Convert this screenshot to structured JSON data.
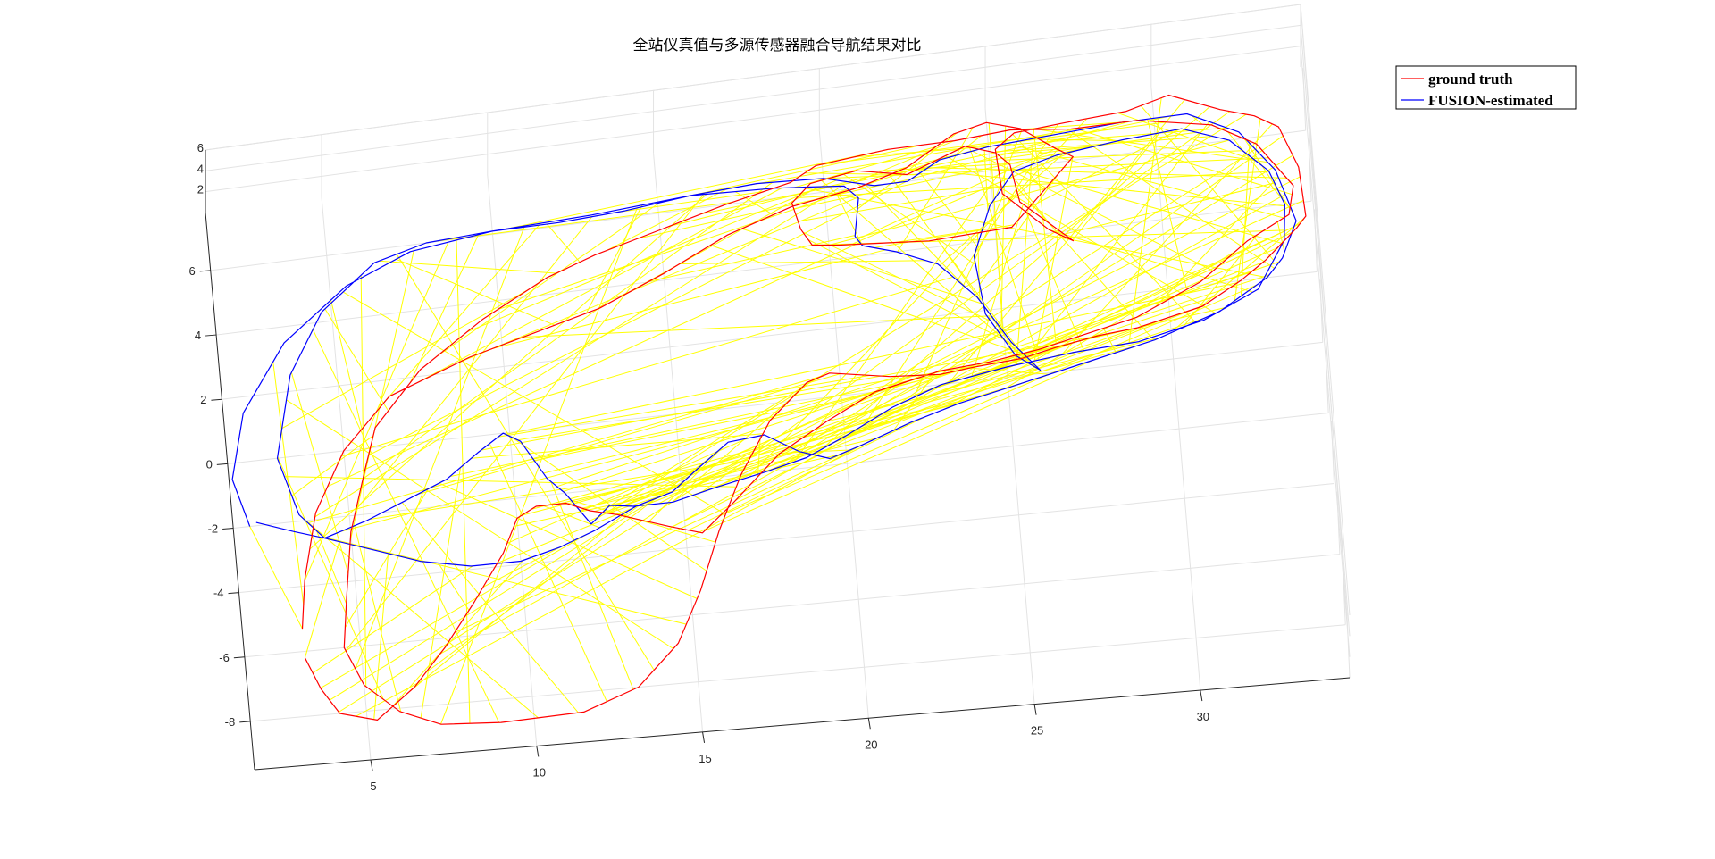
{
  "figure": {
    "title": "全站仪真值与多源传感器融合导航结果对比"
  },
  "chart_data": {
    "type": "line",
    "title": "全站仪真值与多源传感器融合导航结果对比",
    "xlabel": "",
    "ylabel": "",
    "zlabel": "",
    "view": "3d-oblique",
    "grid": true,
    "xlim": [
      1.5,
      34.5
    ],
    "ylim": [
      -9.5,
      7.8
    ],
    "zlim": [
      0,
      6
    ],
    "x_ticks": [
      "5",
      "10",
      "15",
      "20",
      "25",
      "30"
    ],
    "y_ticks": [
      "-8",
      "-6",
      "-4",
      "-2",
      "0",
      "2",
      "4",
      "6"
    ],
    "z_ticks": [
      "2",
      "4",
      "6"
    ],
    "legend_position": "top-right",
    "series": [
      {
        "name": "ground truth",
        "color": "#ff0000",
        "points": [
          [
            3.3,
            -5.3
          ],
          [
            3.5,
            -3.8
          ],
          [
            4.0,
            -1.8
          ],
          [
            5.0,
            0.0
          ],
          [
            6.5,
            1.5
          ],
          [
            9,
            2.4
          ],
          [
            11,
            2.9
          ],
          [
            13,
            3.4
          ],
          [
            15,
            4.2
          ],
          [
            17,
            5.1
          ],
          [
            19,
            5.7
          ],
          [
            21,
            6.0
          ],
          [
            22.5,
            6.4
          ],
          [
            24,
            7.2
          ],
          [
            25,
            7.4
          ],
          [
            26,
            7.1
          ],
          [
            27,
            6.4
          ],
          [
            27.5,
            6.1
          ],
          [
            26.5,
            5.2
          ],
          [
            25.5,
            4.3
          ],
          [
            23,
            4.2
          ],
          [
            20.3,
            4.4
          ],
          [
            19.5,
            4.5
          ],
          [
            19.2,
            5.0
          ],
          [
            19.0,
            5.8
          ],
          [
            19.6,
            6.3
          ],
          [
            21,
            6.5
          ],
          [
            22.5,
            6.2
          ],
          [
            24.3,
            6.8
          ],
          [
            25.2,
            6.5
          ],
          [
            25.6,
            6.1
          ],
          [
            25.8,
            5.0
          ],
          [
            27.3,
            3.7
          ],
          [
            26.6,
            4.1
          ],
          [
            25.3,
            5.3
          ],
          [
            25.2,
            6.6
          ],
          [
            25.8,
            7.0
          ],
          [
            27.3,
            7.1
          ],
          [
            29.2,
            7.2
          ],
          [
            30.5,
            7.5
          ],
          [
            32,
            6.9
          ],
          [
            33,
            6.6
          ],
          [
            33.7,
            6.2
          ],
          [
            34.2,
            5.0
          ],
          [
            34.3,
            3.6
          ],
          [
            34.0,
            3.3
          ],
          [
            33.0,
            2.5
          ],
          [
            32.2,
            2.0
          ],
          [
            31.0,
            1.4
          ],
          [
            29,
            1.0
          ],
          [
            27.8,
            0.9
          ],
          [
            26.5,
            0.7
          ],
          [
            25.5,
            0.5
          ],
          [
            24.0,
            0.4
          ],
          [
            23.0,
            0.3
          ],
          [
            21.5,
            0.4
          ],
          [
            19.7,
            0.7
          ],
          [
            19.0,
            0.5
          ],
          [
            17.8,
            -0.5
          ],
          [
            16.8,
            -2.0
          ],
          [
            16.0,
            -3.6
          ],
          [
            15.3,
            -5.3
          ],
          [
            14.5,
            -6.8
          ],
          [
            13.2,
            -8.0
          ],
          [
            11.5,
            -8.6
          ],
          [
            9,
            -8.7
          ],
          [
            7.2,
            -8.6
          ],
          [
            6.0,
            -8.1
          ],
          [
            5.0,
            -7.2
          ],
          [
            4.5,
            -6.0
          ],
          [
            4.7,
            -4.5
          ],
          [
            5.0,
            -2.5
          ],
          [
            5.6,
            -0.6
          ],
          [
            6.0,
            0.6
          ],
          [
            7.5,
            2.2
          ],
          [
            9.5,
            3.5
          ],
          [
            11.5,
            4.5
          ],
          [
            13,
            5.0
          ],
          [
            15,
            5.5
          ],
          [
            17,
            6.0
          ],
          [
            19.0,
            6.4
          ],
          [
            19.8,
            6.8
          ],
          [
            22,
            7.0
          ],
          [
            24,
            7.0
          ],
          [
            25.7,
            7.1
          ],
          [
            27.5,
            6.9
          ],
          [
            29.5,
            6.9
          ],
          [
            31.7,
            6.5
          ],
          [
            33.0,
            5.8
          ],
          [
            34.0,
            4.5
          ],
          [
            33.8,
            3.7
          ],
          [
            32.5,
            3.1
          ],
          [
            31.0,
            2.1
          ],
          [
            29.0,
            1.3
          ],
          [
            27.5,
            1.0
          ],
          [
            26.0,
            0.7
          ],
          [
            24.5,
            0.5
          ],
          [
            23.0,
            0.4
          ],
          [
            21.0,
            0.0
          ],
          [
            19.5,
            -0.7
          ],
          [
            18.0,
            -1.5
          ],
          [
            16.5,
            -2.8
          ],
          [
            15.5,
            -3.6
          ],
          [
            14.5,
            -3.3
          ],
          [
            13.0,
            -2.8
          ],
          [
            12.2,
            -2.6
          ],
          [
            11.5,
            -2.3
          ],
          [
            10.6,
            -2.3
          ],
          [
            10.0,
            -2.6
          ],
          [
            9.5,
            -3.6
          ],
          [
            8.5,
            -5.0
          ],
          [
            7.5,
            -6.3
          ],
          [
            6.5,
            -7.4
          ],
          [
            5.3,
            -8.3
          ],
          [
            4.2,
            -8.0
          ],
          [
            3.7,
            -7.2
          ],
          [
            3.3,
            -6.2
          ]
        ]
      },
      {
        "name": "FUSION-estimated",
        "color": "#0000ff",
        "points": [
          [
            2.0,
            -2.0
          ],
          [
            1.6,
            -0.5
          ],
          [
            2.1,
            1.5
          ],
          [
            3.5,
            3.5
          ],
          [
            5.5,
            5.0
          ],
          [
            7.5,
            5.8
          ],
          [
            10,
            6.1
          ],
          [
            13,
            6.2
          ],
          [
            16,
            6.4
          ],
          [
            18.5,
            6.3
          ],
          [
            19.6,
            6.2
          ],
          [
            20.6,
            6.1
          ],
          [
            21.0,
            5.7
          ],
          [
            20.8,
            4.6
          ],
          [
            21.0,
            4.3
          ],
          [
            22,
            4.0
          ],
          [
            23.2,
            3.5
          ],
          [
            24.3,
            2.4
          ],
          [
            25.2,
            1.0
          ],
          [
            26.0,
            0.1
          ],
          [
            25.3,
            0.6
          ],
          [
            24.5,
            1.9
          ],
          [
            24.3,
            3.6
          ],
          [
            24.9,
            5.0
          ],
          [
            25.7,
            5.9
          ],
          [
            27,
            6.2
          ],
          [
            29,
            6.4
          ],
          [
            30.8,
            6.5
          ],
          [
            32.2,
            6.0
          ],
          [
            33.3,
            5.0
          ],
          [
            33.7,
            4.0
          ],
          [
            33.6,
            3.0
          ],
          [
            32.7,
            1.7
          ],
          [
            31.0,
            1.0
          ],
          [
            29,
            0.6
          ],
          [
            27,
            0.5
          ],
          [
            25,
            0.3
          ],
          [
            23,
            0.0
          ],
          [
            21.5,
            -0.5
          ],
          [
            20.0,
            -1.2
          ],
          [
            18.8,
            -1.7
          ],
          [
            17.5,
            -2.0
          ],
          [
            16.0,
            -2.3
          ],
          [
            14.7,
            -2.6
          ],
          [
            13.5,
            -2.6
          ],
          [
            12.8,
            -2.5
          ],
          [
            12.2,
            -3.0
          ],
          [
            11.5,
            -2.0
          ],
          [
            11.0,
            -1.5
          ],
          [
            10.3,
            -0.3
          ],
          [
            9.8,
            0.0
          ],
          [
            9.0,
            -0.5
          ],
          [
            8.0,
            -1.2
          ],
          [
            7.0,
            -1.6
          ],
          [
            5.5,
            -2.2
          ],
          [
            4.2,
            -2.6
          ],
          [
            3.5,
            -1.8
          ],
          [
            3.0,
            0.0
          ],
          [
            3.6,
            2.5
          ],
          [
            4.7,
            4.3
          ],
          [
            6.4,
            5.6
          ],
          [
            8,
            6.0
          ],
          [
            10,
            6.1
          ],
          [
            12,
            6.1
          ],
          [
            14,
            6.2
          ],
          [
            16,
            6.4
          ],
          [
            18,
            6.5
          ],
          [
            20,
            6.4
          ],
          [
            21.5,
            6.0
          ],
          [
            22.5,
            6.0
          ],
          [
            23.5,
            6.5
          ],
          [
            25,
            6.7
          ],
          [
            27,
            6.8
          ],
          [
            29,
            6.9
          ],
          [
            31.0,
            6.9
          ],
          [
            32.5,
            6.2
          ],
          [
            33.5,
            5.0
          ],
          [
            34.0,
            3.5
          ],
          [
            33.5,
            2.5
          ],
          [
            33.0,
            2.0
          ],
          [
            31.5,
            1.2
          ],
          [
            29.5,
            0.6
          ],
          [
            27.5,
            0.2
          ],
          [
            25.5,
            -0.2
          ],
          [
            23.5,
            -0.6
          ],
          [
            22.0,
            -1.0
          ],
          [
            20.5,
            -1.5
          ],
          [
            19.5,
            -1.8
          ],
          [
            18.6,
            -1.5
          ],
          [
            17.6,
            -0.9
          ],
          [
            16.5,
            -1.0
          ],
          [
            15.5,
            -1.7
          ],
          [
            14.7,
            -2.3
          ],
          [
            13.6,
            -2.6
          ],
          [
            12.3,
            -3.2
          ],
          [
            11.2,
            -3.6
          ],
          [
            10.0,
            -3.9
          ],
          [
            8.5,
            -3.9
          ],
          [
            7.0,
            -3.6
          ],
          [
            5.6,
            -3.1
          ],
          [
            4.2,
            -2.6
          ],
          [
            3.3,
            -2.3
          ],
          [
            2.2,
            -1.9
          ]
        ]
      }
    ]
  }
}
